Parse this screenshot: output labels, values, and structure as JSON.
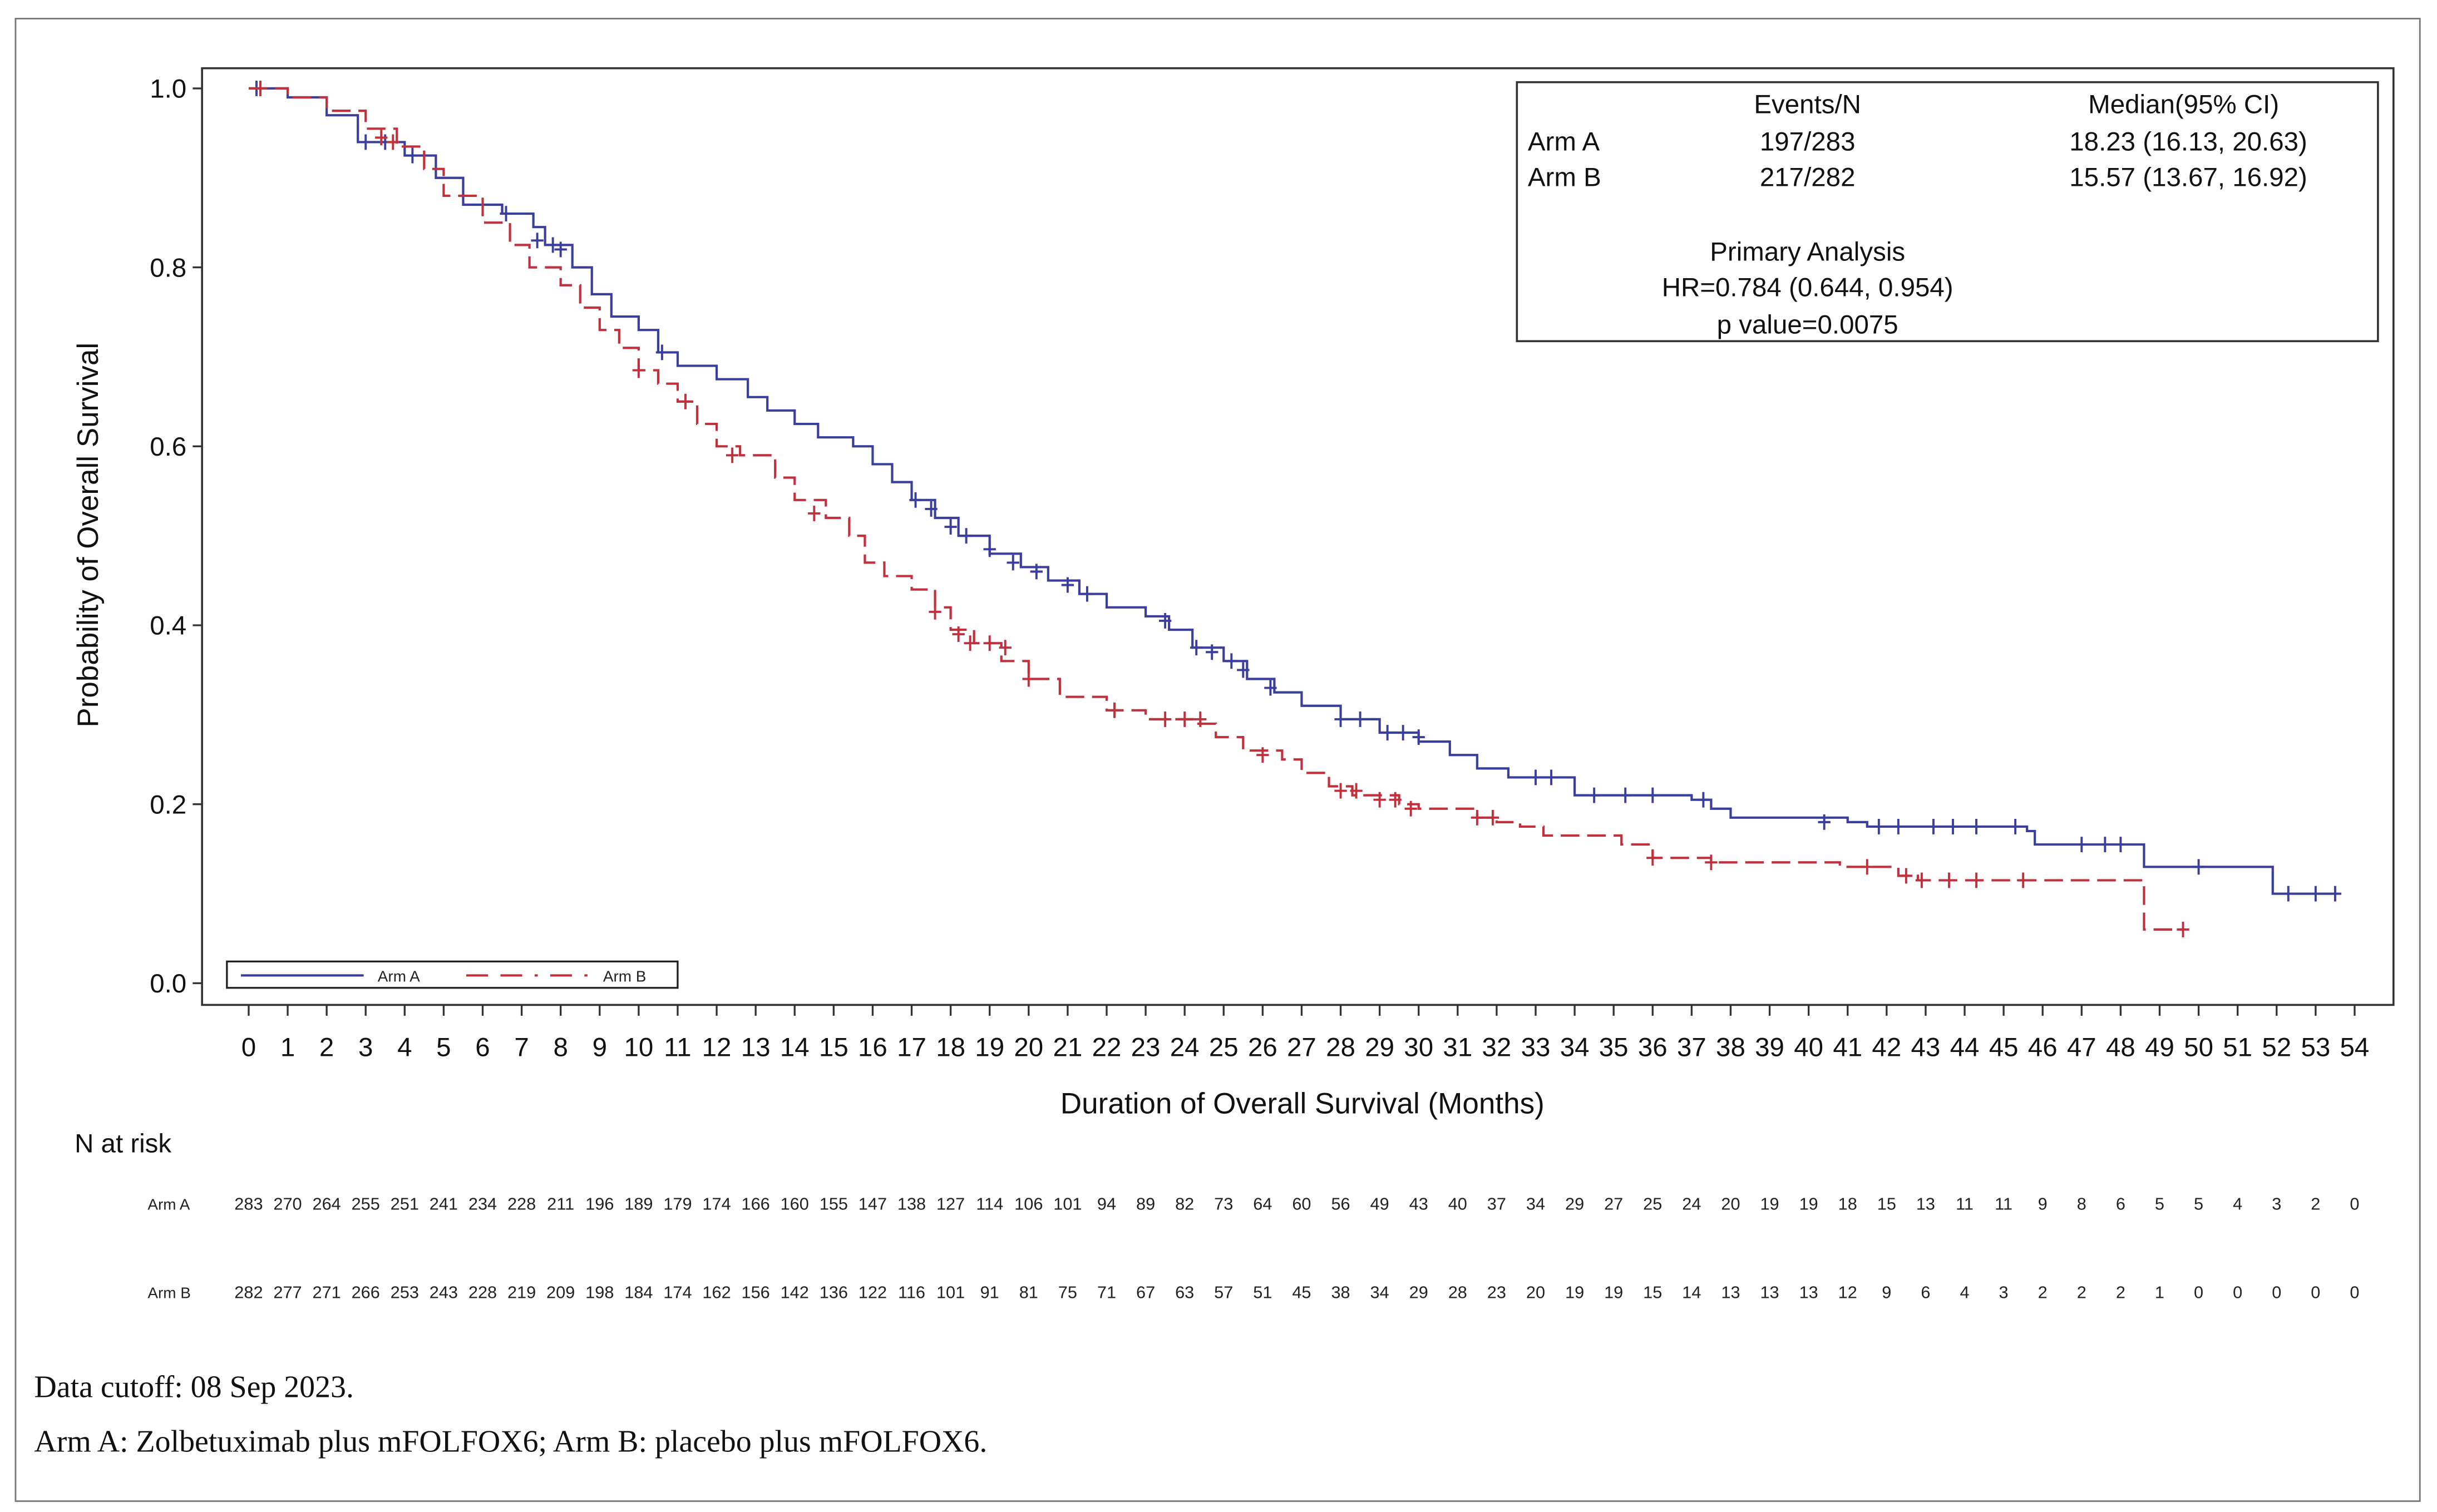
{
  "chart_data": {
    "type": "line",
    "subtype": "kaplan-meier",
    "xlabel": "Duration of Overall Survival (Months)",
    "ylabel": "Probability of Overall Survival",
    "xlim": [
      0,
      54
    ],
    "ylim": [
      0,
      1.0
    ],
    "xticks": [
      0,
      1,
      2,
      3,
      4,
      5,
      6,
      7,
      8,
      9,
      10,
      11,
      12,
      13,
      14,
      15,
      16,
      17,
      18,
      19,
      20,
      21,
      22,
      23,
      24,
      25,
      26,
      27,
      28,
      29,
      30,
      31,
      32,
      33,
      34,
      35,
      36,
      37,
      38,
      39,
      40,
      41,
      42,
      43,
      44,
      45,
      46,
      47,
      48,
      49,
      50,
      51,
      52,
      53,
      54
    ],
    "yticks": [
      "0.0",
      "0.2",
      "0.4",
      "0.6",
      "0.8",
      "1.0"
    ],
    "grid": false,
    "legend": {
      "placement": "bottom-left",
      "entries": [
        "Arm A",
        "Arm B"
      ]
    },
    "series": [
      {
        "name": "Arm A",
        "color": "#3a3f9e",
        "line_style": "solid",
        "steps": [
          [
            0,
            1.0
          ],
          [
            1,
            0.99
          ],
          [
            2,
            0.97
          ],
          [
            2.8,
            0.94
          ],
          [
            4,
            0.925
          ],
          [
            4.8,
            0.9
          ],
          [
            5.5,
            0.87
          ],
          [
            6.5,
            0.86
          ],
          [
            7.3,
            0.845
          ],
          [
            7.6,
            0.825
          ],
          [
            8.3,
            0.8
          ],
          [
            8.8,
            0.77
          ],
          [
            9.3,
            0.745
          ],
          [
            10,
            0.73
          ],
          [
            10.5,
            0.705
          ],
          [
            11,
            0.69
          ],
          [
            12,
            0.675
          ],
          [
            12.8,
            0.655
          ],
          [
            13.3,
            0.64
          ],
          [
            14,
            0.625
          ],
          [
            14.6,
            0.61
          ],
          [
            15.5,
            0.6
          ],
          [
            16,
            0.58
          ],
          [
            16.5,
            0.56
          ],
          [
            17,
            0.54
          ],
          [
            17.6,
            0.52
          ],
          [
            18.2,
            0.5
          ],
          [
            19,
            0.48
          ],
          [
            19.8,
            0.465
          ],
          [
            20.5,
            0.45
          ],
          [
            21.3,
            0.435
          ],
          [
            22,
            0.42
          ],
          [
            23,
            0.41
          ],
          [
            23.6,
            0.395
          ],
          [
            24.2,
            0.375
          ],
          [
            25,
            0.36
          ],
          [
            25.6,
            0.34
          ],
          [
            26.3,
            0.325
          ],
          [
            27,
            0.31
          ],
          [
            28,
            0.295
          ],
          [
            29,
            0.28
          ],
          [
            30,
            0.27
          ],
          [
            30.8,
            0.255
          ],
          [
            31.5,
            0.24
          ],
          [
            32.3,
            0.23
          ],
          [
            34,
            0.21
          ],
          [
            37,
            0.205
          ],
          [
            37.5,
            0.195
          ],
          [
            38,
            0.185
          ],
          [
            41,
            0.18
          ],
          [
            41.5,
            0.175
          ],
          [
            45.6,
            0.17
          ],
          [
            45.8,
            0.155
          ],
          [
            48.6,
            0.13
          ],
          [
            51.9,
            0.1
          ],
          [
            53.6,
            0.1
          ]
        ],
        "censored": [
          [
            0.2,
            1.0
          ],
          [
            3,
            0.94
          ],
          [
            3.5,
            0.94
          ],
          [
            4.2,
            0.925
          ],
          [
            6.6,
            0.86
          ],
          [
            7.4,
            0.83
          ],
          [
            7.8,
            0.825
          ],
          [
            8,
            0.82
          ],
          [
            10.6,
            0.705
          ],
          [
            17.1,
            0.54
          ],
          [
            17.5,
            0.53
          ],
          [
            18,
            0.51
          ],
          [
            18.4,
            0.5
          ],
          [
            19,
            0.485
          ],
          [
            19.6,
            0.47
          ],
          [
            20.2,
            0.46
          ],
          [
            21,
            0.445
          ],
          [
            21.5,
            0.435
          ],
          [
            23.5,
            0.405
          ],
          [
            24.3,
            0.375
          ],
          [
            24.7,
            0.37
          ],
          [
            25.2,
            0.36
          ],
          [
            25.5,
            0.35
          ],
          [
            26.2,
            0.33
          ],
          [
            28,
            0.295
          ],
          [
            28.5,
            0.295
          ],
          [
            29.2,
            0.28
          ],
          [
            29.6,
            0.28
          ],
          [
            30,
            0.275
          ],
          [
            33,
            0.23
          ],
          [
            33.4,
            0.23
          ],
          [
            34.5,
            0.21
          ],
          [
            35.3,
            0.21
          ],
          [
            36,
            0.21
          ],
          [
            37.3,
            0.205
          ],
          [
            40.4,
            0.18
          ],
          [
            41.8,
            0.175
          ],
          [
            42.3,
            0.175
          ],
          [
            43.2,
            0.175
          ],
          [
            43.7,
            0.175
          ],
          [
            44.3,
            0.175
          ],
          [
            45.3,
            0.175
          ],
          [
            47,
            0.155
          ],
          [
            47.6,
            0.155
          ],
          [
            48,
            0.155
          ],
          [
            50,
            0.13
          ],
          [
            52.3,
            0.1
          ],
          [
            53,
            0.1
          ],
          [
            53.5,
            0.1
          ]
        ]
      },
      {
        "name": "Arm B",
        "color": "#c0313d",
        "line_style": "dashed",
        "steps": [
          [
            0,
            1.0
          ],
          [
            1,
            0.99
          ],
          [
            2,
            0.975
          ],
          [
            3,
            0.955
          ],
          [
            3.8,
            0.935
          ],
          [
            4.5,
            0.91
          ],
          [
            5,
            0.88
          ],
          [
            6,
            0.85
          ],
          [
            6.7,
            0.825
          ],
          [
            7.2,
            0.8
          ],
          [
            8,
            0.78
          ],
          [
            8.5,
            0.755
          ],
          [
            9,
            0.73
          ],
          [
            9.5,
            0.71
          ],
          [
            10,
            0.685
          ],
          [
            10.5,
            0.67
          ],
          [
            11,
            0.65
          ],
          [
            11.5,
            0.625
          ],
          [
            12,
            0.6
          ],
          [
            12.6,
            0.59
          ],
          [
            13.5,
            0.565
          ],
          [
            14,
            0.54
          ],
          [
            14.8,
            0.52
          ],
          [
            15.4,
            0.5
          ],
          [
            15.8,
            0.47
          ],
          [
            16.3,
            0.455
          ],
          [
            17,
            0.44
          ],
          [
            17.6,
            0.42
          ],
          [
            18,
            0.395
          ],
          [
            18.6,
            0.38
          ],
          [
            19.3,
            0.36
          ],
          [
            20,
            0.34
          ],
          [
            20.8,
            0.32
          ],
          [
            22,
            0.305
          ],
          [
            23,
            0.295
          ],
          [
            24.3,
            0.29
          ],
          [
            24.8,
            0.275
          ],
          [
            25.5,
            0.26
          ],
          [
            26.5,
            0.25
          ],
          [
            27,
            0.235
          ],
          [
            27.7,
            0.22
          ],
          [
            28.3,
            0.21
          ],
          [
            29.5,
            0.2
          ],
          [
            30,
            0.195
          ],
          [
            31.5,
            0.185
          ],
          [
            32,
            0.18
          ],
          [
            32.6,
            0.175
          ],
          [
            33.2,
            0.165
          ],
          [
            35.2,
            0.155
          ],
          [
            36,
            0.14
          ],
          [
            37.5,
            0.135
          ],
          [
            40.8,
            0.13
          ],
          [
            42.3,
            0.12
          ],
          [
            42.8,
            0.115
          ],
          [
            48.6,
            0.06
          ],
          [
            49.6,
            0.06
          ]
        ],
        "censored": [
          [
            0.3,
            1.0
          ],
          [
            3.4,
            0.945
          ],
          [
            3.7,
            0.94
          ],
          [
            10,
            0.685
          ],
          [
            11.2,
            0.65
          ],
          [
            12.4,
            0.59
          ],
          [
            14.5,
            0.525
          ],
          [
            17.6,
            0.415
          ],
          [
            18.2,
            0.39
          ],
          [
            18.5,
            0.38
          ],
          [
            19,
            0.38
          ],
          [
            19.4,
            0.375
          ],
          [
            20,
            0.34
          ],
          [
            22.2,
            0.305
          ],
          [
            23.5,
            0.295
          ],
          [
            24,
            0.295
          ],
          [
            24.4,
            0.295
          ],
          [
            26,
            0.255
          ],
          [
            28,
            0.215
          ],
          [
            28.4,
            0.215
          ],
          [
            29,
            0.205
          ],
          [
            29.4,
            0.205
          ],
          [
            29.8,
            0.195
          ],
          [
            31.5,
            0.185
          ],
          [
            31.9,
            0.185
          ],
          [
            36,
            0.14
          ],
          [
            37.5,
            0.135
          ],
          [
            41.5,
            0.13
          ],
          [
            42.5,
            0.12
          ],
          [
            42.9,
            0.115
          ],
          [
            43.6,
            0.115
          ],
          [
            44.3,
            0.115
          ],
          [
            45.5,
            0.115
          ],
          [
            49.6,
            0.06
          ]
        ]
      }
    ],
    "risk_table": {
      "title": "N at risk",
      "rows": [
        {
          "label": "Arm A",
          "values": [
            283,
            270,
            264,
            255,
            251,
            241,
            234,
            228,
            211,
            196,
            189,
            179,
            174,
            166,
            160,
            155,
            147,
            138,
            127,
            114,
            106,
            101,
            94,
            89,
            82,
            73,
            64,
            60,
            56,
            49,
            43,
            40,
            37,
            34,
            29,
            27,
            25,
            24,
            20,
            19,
            19,
            18,
            15,
            13,
            11,
            11,
            9,
            8,
            6,
            5,
            5,
            4,
            3,
            2,
            0
          ]
        },
        {
          "label": "Arm B",
          "values": [
            282,
            277,
            271,
            266,
            253,
            243,
            228,
            219,
            209,
            198,
            184,
            174,
            162,
            156,
            142,
            136,
            122,
            116,
            101,
            91,
            81,
            75,
            71,
            67,
            63,
            57,
            51,
            45,
            38,
            34,
            29,
            28,
            23,
            20,
            19,
            19,
            15,
            14,
            13,
            13,
            13,
            12,
            9,
            6,
            4,
            3,
            2,
            2,
            2,
            1,
            0,
            0,
            0,
            0,
            0
          ]
        }
      ]
    },
    "stats_box": {
      "col_events": "Events/N",
      "col_median": "Median(95% CI)",
      "rows": [
        {
          "arm": "Arm A",
          "events": "197/283",
          "median": "18.23 (16.13, 20.63)"
        },
        {
          "arm": "Arm B",
          "events": "217/282",
          "median": "15.57 (13.67, 16.92)"
        }
      ],
      "analysis_title": "Primary Analysis",
      "hr": "HR=0.784 (0.644, 0.954)",
      "p_value": "p value=0.0075"
    }
  },
  "footnotes": [
    "Data cutoff: 08 Sep 2023.",
    "Arm A: Zolbetuximab plus mFOLFOX6; Arm B: placebo plus mFOLFOX6."
  ]
}
